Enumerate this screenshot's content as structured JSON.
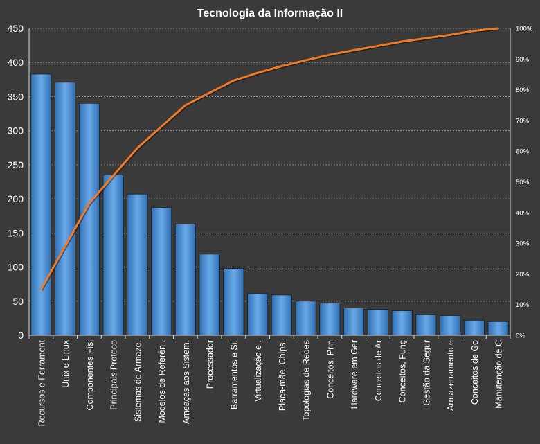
{
  "chart_data": {
    "type": "bar",
    "title": "Tecnologia da Informação II",
    "xlabel": "",
    "ylabel": "",
    "categories": [
      "Recursos e Ferrament",
      "Unix e Linux",
      "Componentes Físi",
      "Principais Protoco",
      "Sistemas de Armaze.",
      "Modelos de Referên .",
      "Ameaças aos Sistem.",
      "Processador",
      "Barramentos e Si.",
      "Virtualização e .",
      "Placa-mãe, Chips.",
      "Topologias de Redes",
      "Conceitos, Prin",
      "Hardware em Ger",
      "Conceitos de Ar",
      "Conceitos, Funç",
      "Gestão da Segur",
      "Armazenamento e",
      "Conceitos de Go",
      "Manutenção de C"
    ],
    "series": [
      {
        "type": "bar",
        "values": [
          383,
          371,
          340,
          235,
          207,
          187,
          163,
          119,
          98,
          61,
          59,
          50,
          47,
          40,
          38,
          36,
          30,
          29,
          22,
          20
        ]
      },
      {
        "type": "line",
        "axis": "right",
        "values": [
          0.15,
          0.29,
          0.43,
          0.52,
          0.61,
          0.68,
          0.75,
          0.79,
          0.83,
          0.855,
          0.877,
          0.896,
          0.914,
          0.929,
          0.943,
          0.957,
          0.968,
          0.979,
          0.992,
          1.0
        ]
      }
    ],
    "ylim": [
      0,
      450
    ],
    "y_ticks": [
      "0",
      "50",
      "100",
      "150",
      "200",
      "250",
      "300",
      "350",
      "400",
      "450"
    ],
    "y2lim": [
      0,
      1
    ],
    "y2_ticks": [
      "0%",
      "10%",
      "20%",
      "30%",
      "40%",
      "50%",
      "60%",
      "70%",
      "80%",
      "90%",
      "100%"
    ],
    "grid": true,
    "legend": "none",
    "colors": {
      "background": "#3a3a3a",
      "bar": "#4a90d9",
      "bar_light": "#6aaae8",
      "bar_dark": "#2f6fb5",
      "line": "#f07a26",
      "text": "#ffffff",
      "grid": "#9a9a9a",
      "axis": "#d8d8d8"
    }
  }
}
